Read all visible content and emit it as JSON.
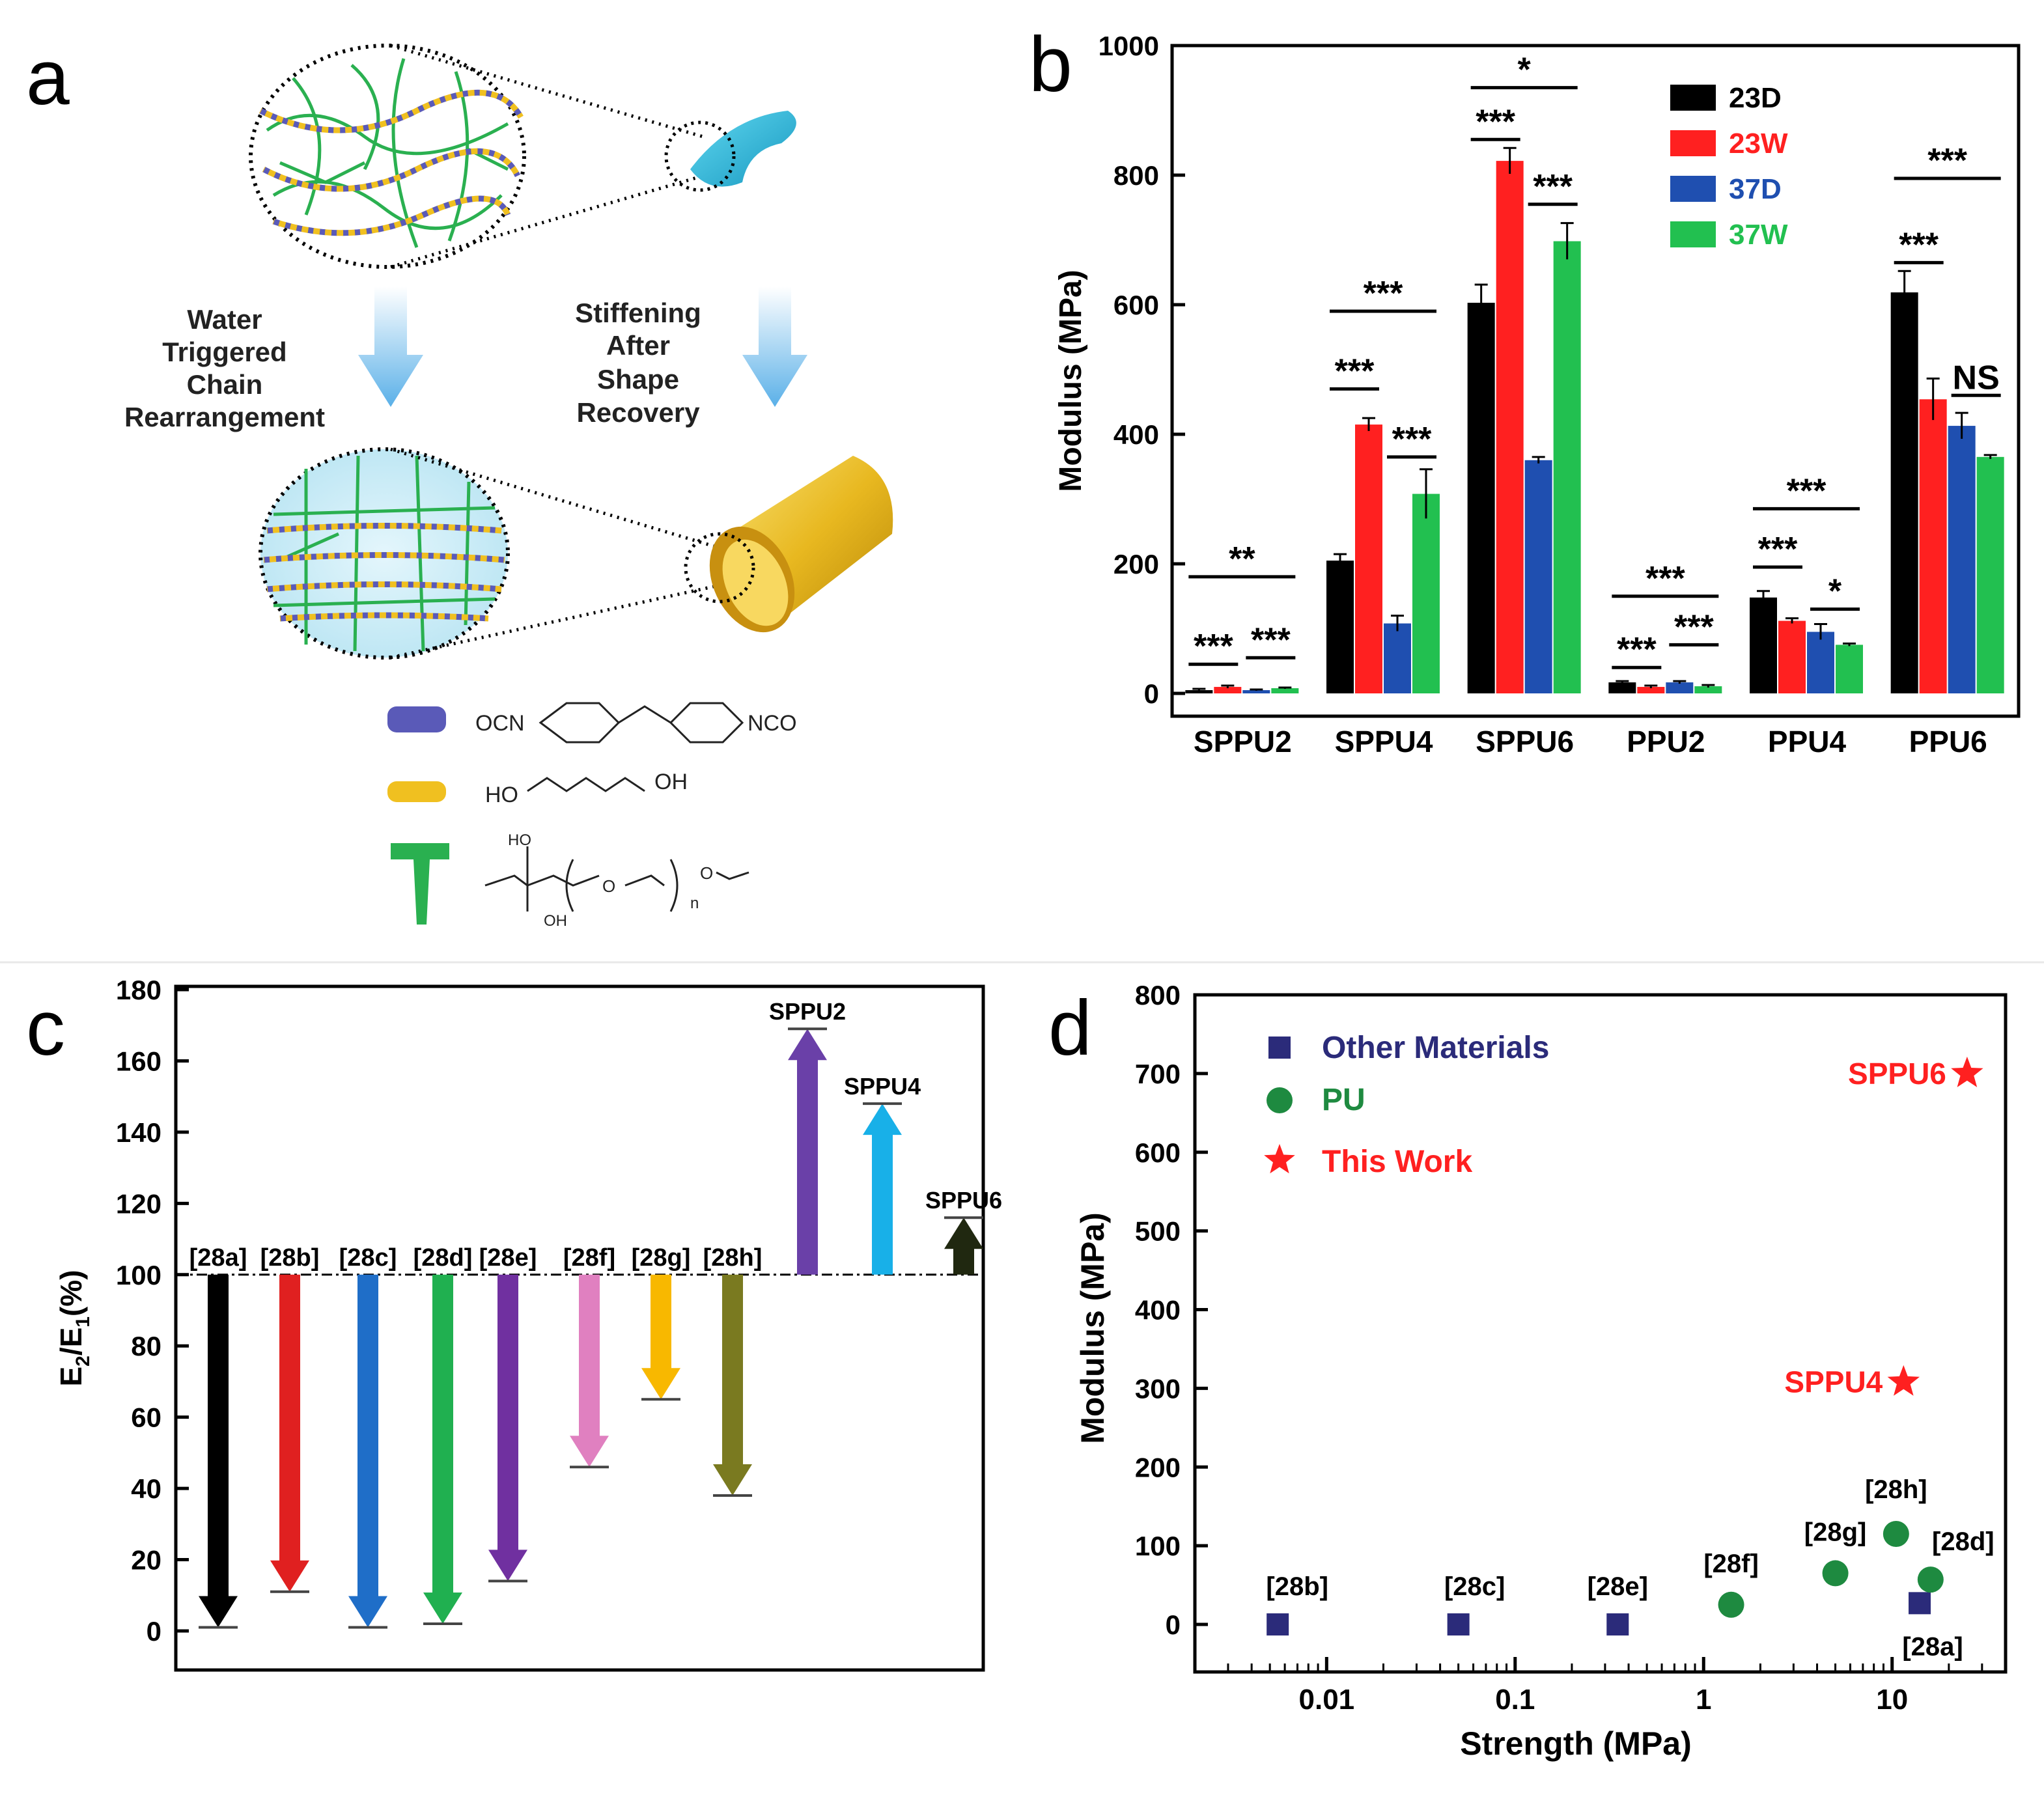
{
  "figure": {
    "panel_labels": [
      "a",
      "b",
      "c",
      "d"
    ],
    "colors": {
      "axis": "#000000",
      "bar_23D": "#000000",
      "bar_23W": "#ff2020",
      "bar_37D": "#1f4fb0",
      "bar_37W": "#22c050",
      "pu_green": "#1e8a40",
      "other_navy": "#2b2b7a",
      "this_work_red": "#ff2020",
      "shell_cyan": "#2ab8d8",
      "tube_gold": "#e8b820",
      "arrow_blue": "#5ab0e8"
    }
  },
  "panel_a": {
    "label": "a",
    "left_caption": [
      "Water",
      "Triggered",
      "Chain",
      "Rearrangement"
    ],
    "right_caption": [
      "Stiffening",
      "After",
      "Shape",
      "Recovery"
    ],
    "legend": [
      {
        "icon": "blue-segment-icon",
        "color": "#5a5ab8",
        "formula_left": "OCN",
        "formula_right": "NCO"
      },
      {
        "icon": "yellow-segment-icon",
        "color": "#f0c020",
        "formula_left": "HO",
        "formula_right": "OH"
      },
      {
        "icon": "green-branch-icon",
        "color": "#2ab050",
        "formula_top": "HO",
        "formula_bottom": "OH",
        "formula_o1": "O",
        "formula_o2": "O",
        "formula_n": "n"
      }
    ]
  },
  "chart_data": [
    {
      "panel": "b",
      "type": "bar",
      "title": "",
      "xlabel": "",
      "ylabel": "Modulus (MPa)",
      "ylim": [
        0,
        1000
      ],
      "yticks": [
        0,
        200,
        400,
        600,
        800,
        1000
      ],
      "categories": [
        "SPPU2",
        "SPPU4",
        "SPPU6",
        "PPU2",
        "PPU4",
        "PPU6"
      ],
      "series": [
        {
          "name": "23D",
          "color": "#000000",
          "values": [
            5,
            205,
            603,
            17,
            148,
            619
          ],
          "errors": [
            2,
            10,
            28,
            2,
            10,
            33
          ]
        },
        {
          "name": "23W",
          "color": "#ff2020",
          "values": [
            10,
            415,
            822,
            10,
            112,
            454
          ],
          "errors": [
            2,
            10,
            20,
            2,
            4,
            32
          ]
        },
        {
          "name": "37D",
          "color": "#1f4fb0",
          "values": [
            5,
            108,
            360,
            17,
            95,
            413
          ],
          "errors": [
            1,
            12,
            5,
            2,
            12,
            20
          ]
        },
        {
          "name": "37W",
          "color": "#22c050",
          "values": [
            8,
            308,
            698,
            11,
            75,
            365
          ],
          "errors": [
            1,
            38,
            28,
            2,
            2,
            3
          ]
        }
      ],
      "legend_position": "top-right",
      "significance": [
        {
          "label": "**",
          "group": 0,
          "from": 0,
          "to": 3,
          "level": 180
        },
        {
          "label": "***",
          "group": 0,
          "from": 0,
          "to": 1,
          "level": 45
        },
        {
          "label": "***",
          "group": 0,
          "from": 2,
          "to": 3,
          "level": 55
        },
        {
          "label": "***",
          "group": 1,
          "from": 0,
          "to": 3,
          "level": 590
        },
        {
          "label": "***",
          "group": 1,
          "from": 0,
          "to": 1,
          "level": 470
        },
        {
          "label": "***",
          "group": 1,
          "from": 2,
          "to": 3,
          "level": 365
        },
        {
          "label": "*",
          "group": 2,
          "from": 0,
          "to": 3,
          "level": 935
        },
        {
          "label": "***",
          "group": 2,
          "from": 0,
          "to": 1,
          "level": 855
        },
        {
          "label": "***",
          "group": 2,
          "from": 2,
          "to": 3,
          "level": 755
        },
        {
          "label": "***",
          "group": 3,
          "from": 0,
          "to": 3,
          "level": 150
        },
        {
          "label": "***",
          "group": 3,
          "from": 0,
          "to": 1,
          "level": 40
        },
        {
          "label": "***",
          "group": 3,
          "from": 2,
          "to": 3,
          "level": 75
        },
        {
          "label": "***",
          "group": 4,
          "from": 0,
          "to": 3,
          "level": 285
        },
        {
          "label": "***",
          "group": 4,
          "from": 0,
          "to": 1,
          "level": 195
        },
        {
          "label": "*",
          "group": 4,
          "from": 2,
          "to": 3,
          "level": 130
        },
        {
          "label": "***",
          "group": 5,
          "from": 0,
          "to": 3,
          "level": 795
        },
        {
          "label": "***",
          "group": 5,
          "from": 0,
          "to": 1,
          "level": 665
        },
        {
          "label": "NS",
          "group": 5,
          "from": 2,
          "to": 3,
          "level": 460
        }
      ]
    },
    {
      "panel": "c",
      "type": "bar",
      "title": "",
      "xlabel": "",
      "ylabel": "E2/E1(%)",
      "ylabel_main": "E",
      "ylabel_sub1": "2",
      "ylabel_mid": "/E",
      "ylabel_sub2": "1",
      "ylabel_tail": "(%)",
      "ylim": [
        -10,
        180
      ],
      "yticks": [
        0,
        20,
        40,
        60,
        80,
        100,
        120,
        140,
        160,
        180
      ],
      "baseline": 100,
      "categories": [
        "[28a]",
        "[28b]",
        "[28c]",
        "[28d]",
        "[28e]",
        "[28f]",
        "[28g]",
        "[28h]",
        "SPPU2",
        "SPPU4",
        "SPPU6"
      ],
      "values": [
        1,
        11,
        1,
        2,
        14,
        46,
        65,
        38,
        169,
        148,
        116
      ],
      "colors": [
        "#000000",
        "#e02020",
        "#1f6ec8",
        "#20b050",
        "#7030a0",
        "#e080c0",
        "#f8b800",
        "#7a7a20",
        "#6a40a8",
        "#18b0e8",
        "#202810"
      ]
    },
    {
      "panel": "d",
      "type": "scatter",
      "title": "",
      "xlabel": "Strength (MPa)",
      "ylabel": "Modulus (MPa)",
      "xscale": "log",
      "xlim": [
        0.002,
        40
      ],
      "ylim": [
        -50,
        800
      ],
      "xticks": [
        0.01,
        0.1,
        1,
        10
      ],
      "xtick_labels": [
        "0.01",
        "0.1",
        "1",
        "10"
      ],
      "yticks": [
        0,
        100,
        200,
        300,
        400,
        500,
        600,
        700,
        800
      ],
      "legend_position": "top-left",
      "series": [
        {
          "name": "Other Materials",
          "marker": "square",
          "color": "#2b2b7a",
          "points": [
            {
              "label": "[28b]",
              "x": 0.0055,
              "y": 0
            },
            {
              "label": "[28c]",
              "x": 0.05,
              "y": 0
            },
            {
              "label": "[28e]",
              "x": 0.35,
              "y": 0
            },
            {
              "label": "[28a]",
              "x": 14,
              "y": 27
            }
          ]
        },
        {
          "name": "PU",
          "marker": "circle",
          "color": "#1e8a40",
          "points": [
            {
              "label": "[28f]",
              "x": 1.4,
              "y": 25
            },
            {
              "label": "[28g]",
              "x": 5,
              "y": 65
            },
            {
              "label": "[28h]",
              "x": 10.5,
              "y": 115
            },
            {
              "label": "[28d]",
              "x": 16,
              "y": 57
            }
          ]
        },
        {
          "name": "This Work",
          "marker": "star",
          "color": "#ff2020",
          "points": [
            {
              "label": "SPPU6",
              "x": 25,
              "y": 700
            },
            {
              "label": "SPPU4",
              "x": 11.5,
              "y": 308
            }
          ]
        }
      ]
    }
  ]
}
